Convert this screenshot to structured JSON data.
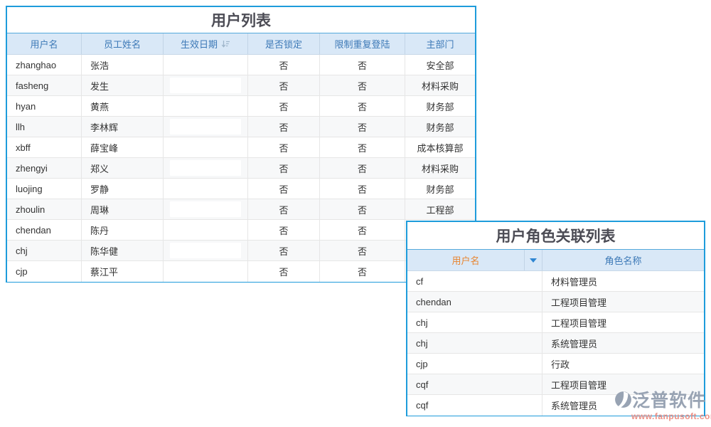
{
  "colors": {
    "panel_border": "#1e9cdb",
    "header_bg": "#d9e8f7",
    "header_text": "#3d79b7",
    "username_header_text": "#e8842f",
    "body_text": "#333333",
    "title_text": "#4c4c55",
    "watermark_text": "#98a3b3",
    "watermark_url": "#ec8f85"
  },
  "user_table": {
    "title": "用户列表",
    "columns": [
      "用户名",
      "员工姓名",
      "生效日期",
      "是否锁定",
      "限制重复登陆",
      "主部门"
    ],
    "sorted_column": "生效日期",
    "sort_icon": "sort-descending-icon",
    "rows": [
      {
        "username": "zhanghao",
        "name": "张浩",
        "date": "",
        "locked": "否",
        "restrict": "否",
        "dept": "安全部"
      },
      {
        "username": "fasheng",
        "name": "发生",
        "date": "",
        "locked": "否",
        "restrict": "否",
        "dept": "材料采购"
      },
      {
        "username": "hyan",
        "name": "黄燕",
        "date": "",
        "locked": "否",
        "restrict": "否",
        "dept": "财务部"
      },
      {
        "username": "llh",
        "name": "李林辉",
        "date": "",
        "locked": "否",
        "restrict": "否",
        "dept": "财务部"
      },
      {
        "username": "xbff",
        "name": "薛宝峰",
        "date": "",
        "locked": "否",
        "restrict": "否",
        "dept": "成本核算部"
      },
      {
        "username": "zhengyi",
        "name": "郑义",
        "date": "",
        "locked": "否",
        "restrict": "否",
        "dept": "材料采购"
      },
      {
        "username": "luojing",
        "name": "罗静",
        "date": "",
        "locked": "否",
        "restrict": "否",
        "dept": "财务部"
      },
      {
        "username": "zhoulin",
        "name": "周琳",
        "date": "",
        "locked": "否",
        "restrict": "否",
        "dept": "工程部"
      },
      {
        "username": "chendan",
        "name": "陈丹",
        "date": "",
        "locked": "否",
        "restrict": "否",
        "dept": ""
      },
      {
        "username": "chj",
        "name": "陈华健",
        "date": "",
        "locked": "否",
        "restrict": "否",
        "dept": ""
      },
      {
        "username": "cjp",
        "name": "蔡江平",
        "date": "",
        "locked": "否",
        "restrict": "否",
        "dept": ""
      }
    ]
  },
  "role_table": {
    "title": "用户角色关联列表",
    "columns": [
      "用户名",
      "角色名称"
    ],
    "filter_icon": "dropdown-arrow-icon",
    "rows": [
      {
        "username": "cf",
        "role": "材料管理员"
      },
      {
        "username": "chendan",
        "role": "工程项目管理"
      },
      {
        "username": "chj",
        "role": "工程项目管理"
      },
      {
        "username": "chj",
        "role": "系统管理员"
      },
      {
        "username": "cjp",
        "role": "行政"
      },
      {
        "username": "cqf",
        "role": "工程项目管理"
      },
      {
        "username": "cqf",
        "role": "系统管理员"
      }
    ]
  },
  "watermark": {
    "brand": "泛普软件",
    "url": "www.fanpusoft.com"
  }
}
